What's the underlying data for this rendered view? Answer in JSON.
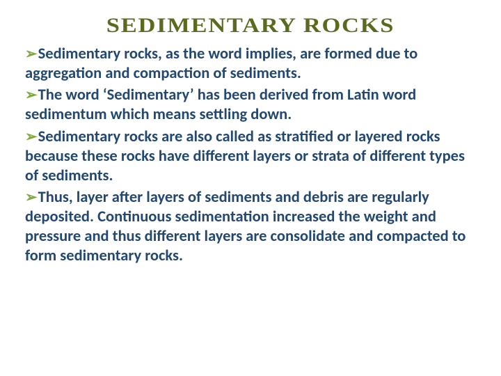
{
  "colors": {
    "title": "#5a6b1f",
    "bullet_text": "#23486f",
    "arrow": "#7fa93f",
    "background": "#ffffff"
  },
  "title": "SEDIMENTARY ROCKS",
  "bullets": [
    "Sedimentary rocks, as the word implies, are formed due to aggregation and compaction of sediments.",
    "The word ‘Sedimentary’ has been derived from Latin word sedimentum which means settling down.",
    "Sedimentary rocks are also called as stratified or layered rocks because these rocks have different layers or strata of different types of sediments.",
    "Thus, layer after layers of sediments and debris are regularly deposited. Continuous sedimentation increased the weight and pressure and thus different layers are consolidate and compacted to form sedimentary rocks."
  ],
  "arrow_glyph": "➢"
}
